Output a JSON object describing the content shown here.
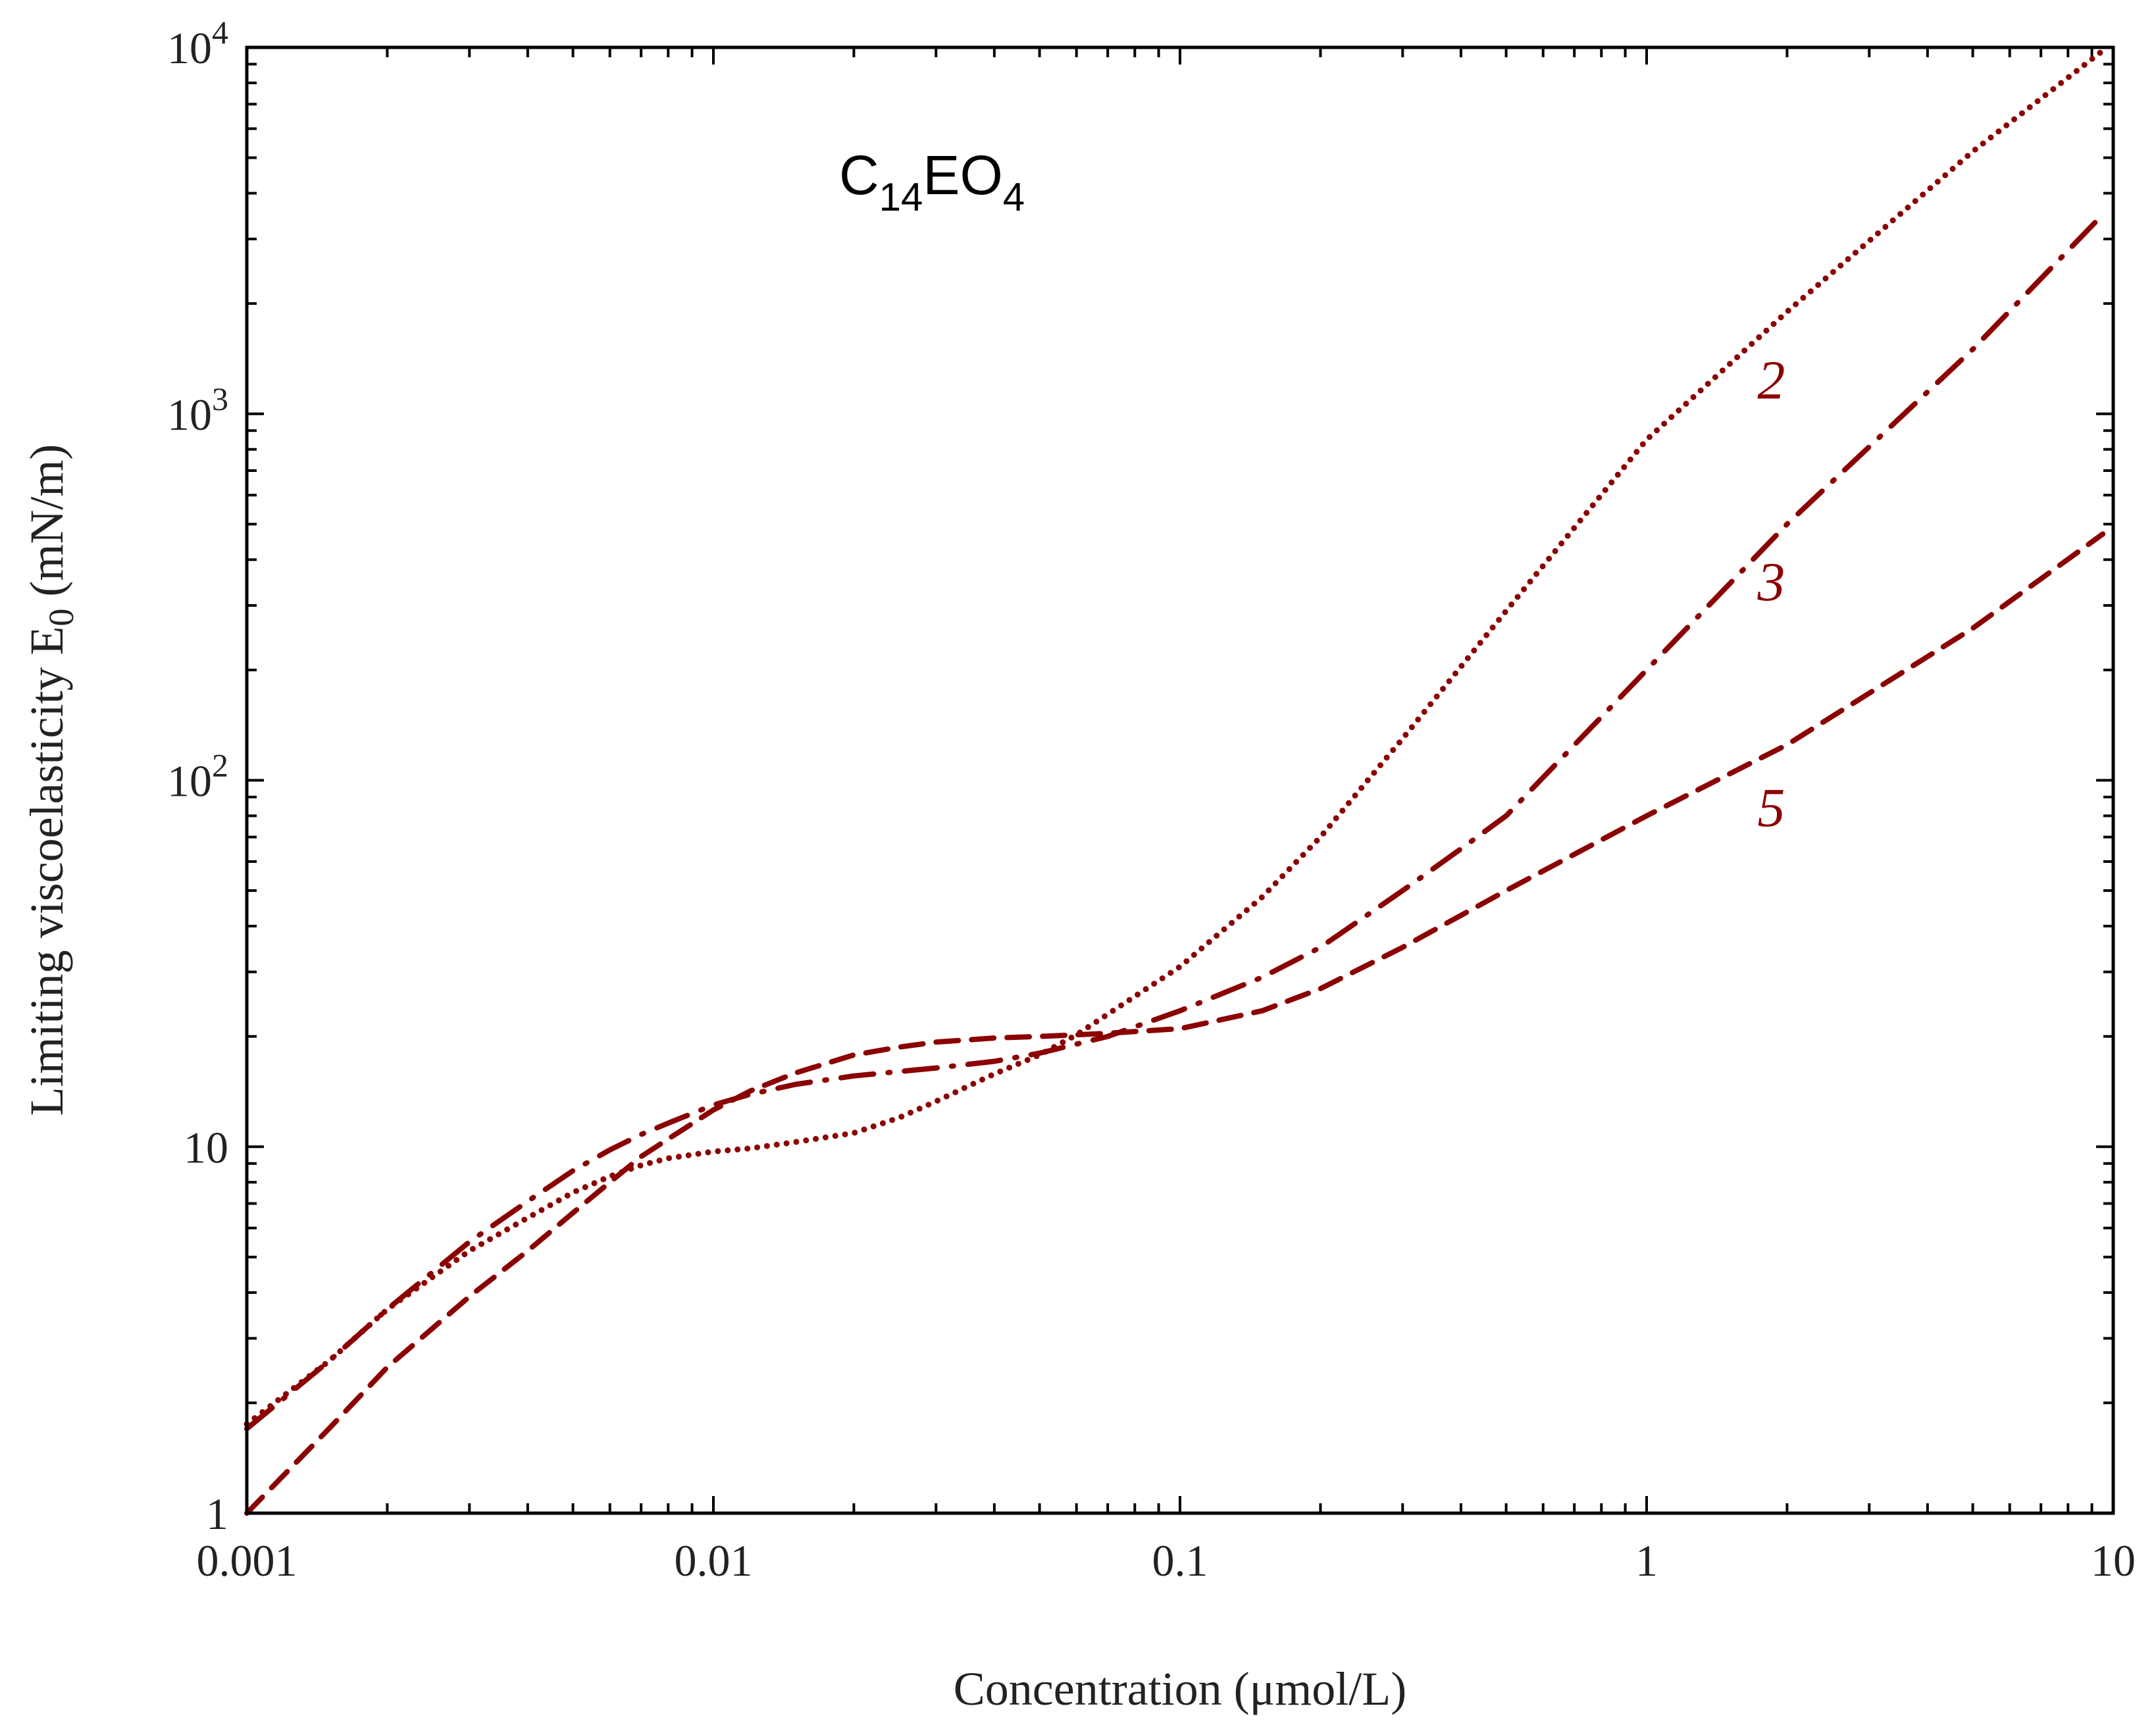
{
  "chart_data": {
    "type": "line",
    "xscale": "log",
    "yscale": "log",
    "xlim": [
      0.001,
      10
    ],
    "ylim": [
      1,
      10000
    ],
    "xlabel": "Concentration (μmol/L)",
    "ylabel": {
      "main": "Limiting viscoelasticity E",
      "sub": "0",
      "unit": " (mN/m)"
    },
    "annotation": {
      "base1": "C",
      "sub1": "14",
      "base2": "EO",
      "sub2": "4"
    },
    "x_ticks": [
      {
        "value": 0.001,
        "label": "0.001"
      },
      {
        "value": 0.01,
        "label": "0.01"
      },
      {
        "value": 0.1,
        "label": "0.1"
      },
      {
        "value": 1,
        "label": "1"
      },
      {
        "value": 10,
        "label": "10"
      }
    ],
    "y_ticks": [
      {
        "value": 1,
        "label": "1"
      },
      {
        "value": 10,
        "label": "10"
      },
      {
        "value": 100,
        "label": "10",
        "exp": "2"
      },
      {
        "value": 1000,
        "label": "10",
        "exp": "3"
      },
      {
        "value": 10000,
        "label": "10",
        "exp": "4"
      }
    ],
    "color": "#8b0000",
    "series": [
      {
        "name": "2",
        "style": "dotted",
        "label_at": [
          1.85,
          1100
        ],
        "x": [
          0.001,
          0.0015,
          0.002,
          0.003,
          0.004,
          0.005,
          0.006,
          0.007,
          0.008,
          0.01,
          0.012,
          0.015,
          0.02,
          0.025,
          0.03,
          0.04,
          0.05,
          0.06,
          0.07,
          0.1,
          0.15,
          0.2,
          0.3,
          0.5,
          1,
          2,
          5,
          9.5
        ],
        "y": [
          1.75,
          2.6,
          3.6,
          5.2,
          6.4,
          7.5,
          8.3,
          8.9,
          9.3,
          9.7,
          9.9,
          10.3,
          10.9,
          12.0,
          13.3,
          15.8,
          17.8,
          20.2,
          23,
          31,
          48,
          70,
          130,
          290,
          850,
          1900,
          5200,
          9800
        ]
      },
      {
        "name": "3",
        "style": "dashdot",
        "label_at": [
          1.85,
          310
        ],
        "x": [
          0.001,
          0.0015,
          0.002,
          0.003,
          0.004,
          0.005,
          0.006,
          0.007,
          0.008,
          0.01,
          0.012,
          0.015,
          0.02,
          0.03,
          0.04,
          0.05,
          0.07,
          0.1,
          0.15,
          0.2,
          0.3,
          0.4,
          0.5,
          1,
          2,
          5,
          9.5
        ],
        "y": [
          1.7,
          2.6,
          3.6,
          5.5,
          7.1,
          8.6,
          9.8,
          10.8,
          11.6,
          13.0,
          13.9,
          14.8,
          15.6,
          16.4,
          17.1,
          18.0,
          20.0,
          23.5,
          29,
          35,
          50,
          65,
          80,
          200,
          500,
          1500,
          3500
        ]
      },
      {
        "name": "5",
        "style": "dashed",
        "label_at": [
          1.85,
          75
        ],
        "x": [
          0.001,
          0.0015,
          0.002,
          0.003,
          0.004,
          0.005,
          0.006,
          0.007,
          0.008,
          0.01,
          0.012,
          0.015,
          0.02,
          0.025,
          0.03,
          0.04,
          0.05,
          0.06,
          0.07,
          0.1,
          0.15,
          0.2,
          0.3,
          0.5,
          1,
          2,
          5,
          9.5
        ],
        "y": [
          1.0,
          1.7,
          2.5,
          3.9,
          5.2,
          6.6,
          8.0,
          9.4,
          10.5,
          12.6,
          14.2,
          15.9,
          17.8,
          18.7,
          19.3,
          19.8,
          20.0,
          20.2,
          20.4,
          21.0,
          23.5,
          27,
          35,
          50,
          80,
          125,
          260,
          470
        ]
      }
    ]
  }
}
